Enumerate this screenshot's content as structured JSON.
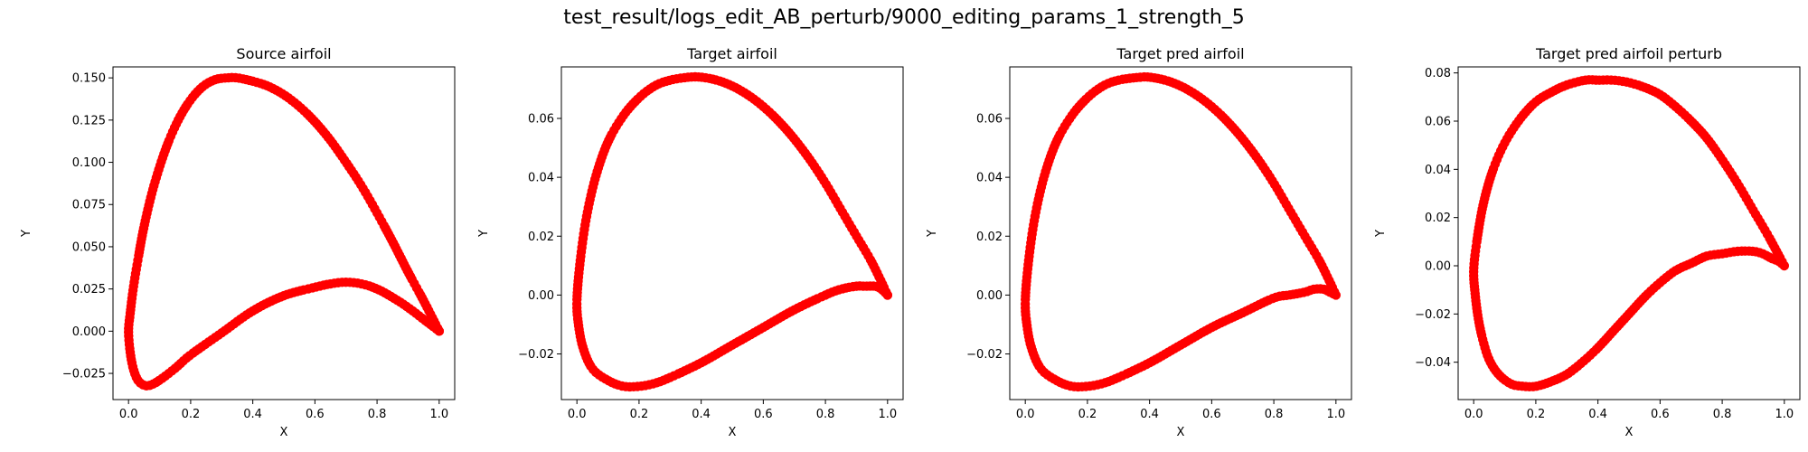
{
  "figure_title": "test_result/logs_edit_AB_perturb/9000_editing_params_1_strength_5",
  "colors": {
    "points": "#ff0000",
    "axes": "#000000",
    "background": "#ffffff"
  },
  "chart_data": [
    {
      "type": "scatter",
      "title": "Source airfoil",
      "xlabel": "X",
      "ylabel": "Y",
      "xlim": [
        -0.05,
        1.05
      ],
      "ylim": [
        -0.0405,
        0.1565
      ],
      "xticks": [
        0.0,
        0.2,
        0.4,
        0.6,
        0.8,
        1.0
      ],
      "xtick_labels": [
        "0.0",
        "0.2",
        "0.4",
        "0.6",
        "0.8",
        "1.0"
      ],
      "yticks": [
        -0.025,
        0.0,
        0.025,
        0.05,
        0.075,
        0.1,
        0.125,
        0.15
      ],
      "ytick_labels": [
        "−0.025",
        "0.000",
        "0.025",
        "0.050",
        "0.075",
        "0.100",
        "0.125",
        "0.150"
      ],
      "upper_surface": {
        "x": [
          1.0,
          0.95,
          0.9,
          0.85,
          0.8,
          0.75,
          0.7,
          0.65,
          0.6,
          0.55,
          0.5,
          0.45,
          0.4,
          0.35,
          0.32,
          0.28,
          0.24,
          0.2,
          0.16,
          0.12,
          0.08,
          0.05,
          0.03,
          0.015,
          0.005,
          0.0
        ],
        "y": [
          0.0,
          0.018,
          0.035,
          0.053,
          0.07,
          0.086,
          0.1,
          0.113,
          0.124,
          0.133,
          0.14,
          0.145,
          0.148,
          0.15,
          0.15,
          0.149,
          0.145,
          0.137,
          0.125,
          0.108,
          0.085,
          0.062,
          0.042,
          0.025,
          0.01,
          0.0
        ]
      },
      "lower_surface": {
        "x": [
          0.0,
          0.005,
          0.015,
          0.03,
          0.05,
          0.07,
          0.1,
          0.15,
          0.2,
          0.3,
          0.4,
          0.5,
          0.6,
          0.65,
          0.7,
          0.75,
          0.8,
          0.85,
          0.9,
          0.95,
          1.0
        ],
        "y": [
          0.0,
          -0.012,
          -0.022,
          -0.029,
          -0.032,
          -0.032,
          -0.029,
          -0.022,
          -0.014,
          -0.001,
          0.012,
          0.021,
          0.026,
          0.028,
          0.029,
          0.028,
          0.025,
          0.02,
          0.014,
          0.007,
          0.0
        ]
      }
    },
    {
      "type": "scatter",
      "title": "Target airfoil",
      "xlabel": "X",
      "ylabel": "Y",
      "xlim": [
        -0.05,
        1.05
      ],
      "ylim": [
        -0.0355,
        0.0775
      ],
      "xticks": [
        0.0,
        0.2,
        0.4,
        0.6,
        0.8,
        1.0
      ],
      "xtick_labels": [
        "0.0",
        "0.2",
        "0.4",
        "0.6",
        "0.8",
        "1.0"
      ],
      "yticks": [
        -0.02,
        0.0,
        0.02,
        0.04,
        0.06
      ],
      "ytick_labels": [
        "−0.02",
        "0.00",
        "0.02",
        "0.04",
        "0.06"
      ],
      "upper_surface": {
        "x": [
          1.0,
          0.95,
          0.9,
          0.85,
          0.8,
          0.75,
          0.7,
          0.65,
          0.6,
          0.55,
          0.5,
          0.45,
          0.4,
          0.36,
          0.3,
          0.25,
          0.2,
          0.15,
          0.1,
          0.06,
          0.03,
          0.01,
          0.0
        ],
        "y": [
          0.0,
          0.011,
          0.02,
          0.029,
          0.038,
          0.046,
          0.053,
          0.059,
          0.064,
          0.068,
          0.071,
          0.073,
          0.074,
          0.074,
          0.073,
          0.071,
          0.067,
          0.061,
          0.052,
          0.04,
          0.026,
          0.011,
          -0.002
        ]
      },
      "lower_surface": {
        "x": [
          0.0,
          0.005,
          0.02,
          0.05,
          0.1,
          0.15,
          0.2,
          0.25,
          0.3,
          0.4,
          0.5,
          0.6,
          0.7,
          0.8,
          0.85,
          0.9,
          0.93,
          0.96,
          0.98,
          1.0
        ],
        "y": [
          -0.002,
          -0.01,
          -0.018,
          -0.025,
          -0.029,
          -0.031,
          -0.031,
          -0.03,
          -0.028,
          -0.023,
          -0.017,
          -0.011,
          -0.005,
          0.0,
          0.002,
          0.003,
          0.003,
          0.003,
          0.002,
          0.0
        ]
      }
    },
    {
      "type": "scatter",
      "title": "Target pred airfoil",
      "xlabel": "X",
      "ylabel": "Y",
      "xlim": [
        -0.05,
        1.05
      ],
      "ylim": [
        -0.0355,
        0.0775
      ],
      "xticks": [
        0.0,
        0.2,
        0.4,
        0.6,
        0.8,
        1.0
      ],
      "xtick_labels": [
        "0.0",
        "0.2",
        "0.4",
        "0.6",
        "0.8",
        "1.0"
      ],
      "yticks": [
        -0.02,
        0.0,
        0.02,
        0.04,
        0.06
      ],
      "ytick_labels": [
        "−0.02",
        "0.00",
        "0.02",
        "0.04",
        "0.06"
      ],
      "upper_surface": {
        "x": [
          1.0,
          0.95,
          0.9,
          0.85,
          0.8,
          0.75,
          0.7,
          0.65,
          0.6,
          0.55,
          0.5,
          0.45,
          0.4,
          0.37,
          0.3,
          0.25,
          0.2,
          0.15,
          0.1,
          0.06,
          0.03,
          0.01,
          0.0
        ],
        "y": [
          0.0,
          0.011,
          0.02,
          0.029,
          0.038,
          0.046,
          0.053,
          0.059,
          0.064,
          0.068,
          0.071,
          0.073,
          0.074,
          0.074,
          0.073,
          0.071,
          0.067,
          0.061,
          0.052,
          0.04,
          0.026,
          0.011,
          -0.002
        ]
      },
      "lower_surface": {
        "x": [
          0.0,
          0.005,
          0.02,
          0.05,
          0.1,
          0.15,
          0.2,
          0.25,
          0.3,
          0.4,
          0.5,
          0.6,
          0.7,
          0.8,
          0.85,
          0.9,
          0.93,
          0.96,
          0.98,
          1.0
        ],
        "y": [
          -0.002,
          -0.01,
          -0.018,
          -0.025,
          -0.029,
          -0.031,
          -0.031,
          -0.03,
          -0.028,
          -0.023,
          -0.017,
          -0.011,
          -0.006,
          -0.001,
          0.0,
          0.001,
          0.002,
          0.002,
          0.001,
          0.0
        ]
      }
    },
    {
      "type": "scatter",
      "title": "Target pred airfoil perturb",
      "xlabel": "X",
      "ylabel": "Y",
      "xlim": [
        -0.05,
        1.05
      ],
      "ylim": [
        -0.0555,
        0.0825
      ],
      "xticks": [
        0.0,
        0.2,
        0.4,
        0.6,
        0.8,
        1.0
      ],
      "xtick_labels": [
        "0.0",
        "0.2",
        "0.4",
        "0.6",
        "0.8",
        "1.0"
      ],
      "yticks": [
        -0.04,
        -0.02,
        0.0,
        0.02,
        0.04,
        0.06,
        0.08
      ],
      "ytick_labels": [
        "−0.04",
        "−0.02",
        "0.00",
        "0.02",
        "0.04",
        "0.06",
        "0.08"
      ],
      "upper_surface": {
        "x": [
          1.0,
          0.95,
          0.9,
          0.85,
          0.8,
          0.75,
          0.7,
          0.65,
          0.6,
          0.55,
          0.5,
          0.45,
          0.4,
          0.36,
          0.3,
          0.25,
          0.2,
          0.15,
          0.1,
          0.06,
          0.03,
          0.01,
          0.0
        ],
        "y": [
          0.0,
          0.012,
          0.023,
          0.034,
          0.044,
          0.053,
          0.06,
          0.066,
          0.071,
          0.074,
          0.076,
          0.077,
          0.077,
          0.077,
          0.075,
          0.072,
          0.068,
          0.061,
          0.051,
          0.039,
          0.025,
          0.01,
          -0.002
        ]
      },
      "lower_surface": {
        "x": [
          0.0,
          0.005,
          0.015,
          0.03,
          0.05,
          0.08,
          0.12,
          0.16,
          0.2,
          0.25,
          0.3,
          0.35,
          0.4,
          0.45,
          0.5,
          0.55,
          0.6,
          0.65,
          0.7,
          0.75,
          0.8,
          0.85,
          0.9,
          0.93,
          0.96,
          0.98,
          1.0
        ],
        "y": [
          -0.002,
          -0.012,
          -0.022,
          -0.031,
          -0.039,
          -0.045,
          -0.049,
          -0.05,
          -0.05,
          -0.048,
          -0.045,
          -0.04,
          -0.034,
          -0.027,
          -0.02,
          -0.013,
          -0.007,
          -0.002,
          0.001,
          0.004,
          0.005,
          0.006,
          0.006,
          0.005,
          0.003,
          0.002,
          0.0
        ]
      }
    }
  ]
}
